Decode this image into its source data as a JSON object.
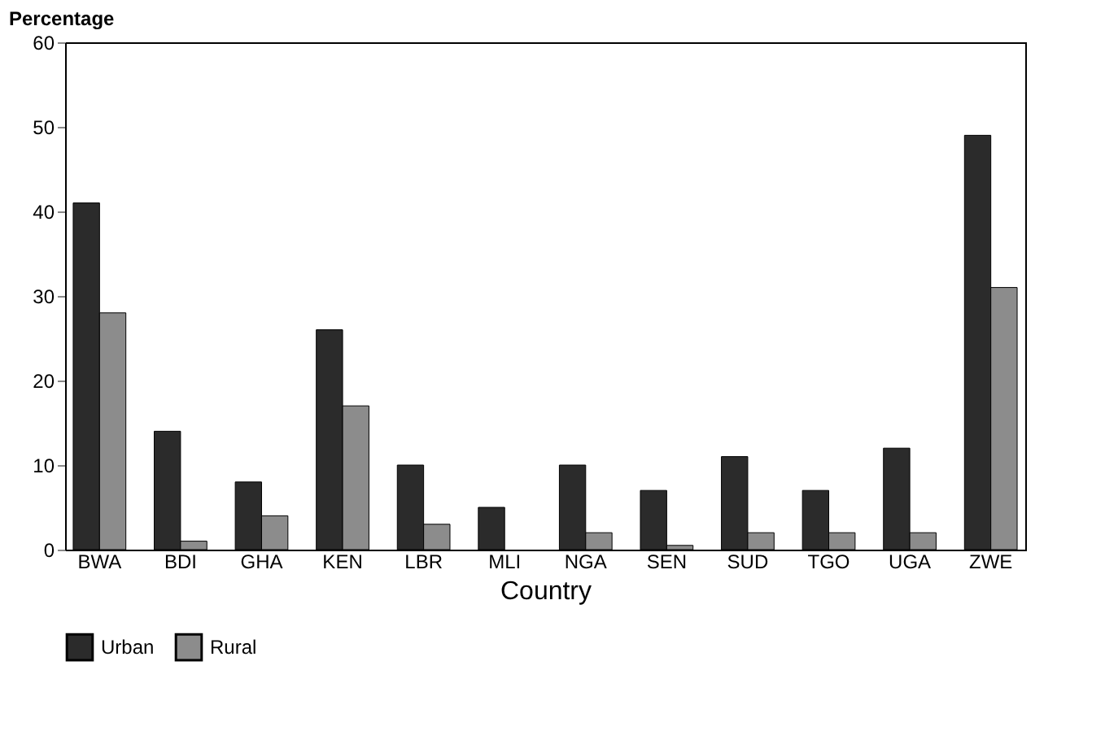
{
  "chart_data": {
    "type": "bar",
    "xlabel": "Country",
    "ylabel": "Percentage",
    "categories": [
      "BWA",
      "BDI",
      "GHA",
      "KEN",
      "LBR",
      "MLI",
      "NGA",
      "SEN",
      "SUD",
      "TGO",
      "UGA",
      "ZWE"
    ],
    "series": [
      {
        "name": "Urban",
        "color": "#2b2b2b",
        "values": [
          41,
          14,
          8,
          26,
          10,
          5,
          10,
          7,
          11,
          7,
          12,
          49
        ]
      },
      {
        "name": "Rural",
        "color": "#8c8c8c",
        "values": [
          28,
          1,
          4,
          17,
          3,
          0,
          2,
          0.5,
          2,
          2,
          2,
          31
        ]
      }
    ],
    "ylim": [
      0,
      60
    ],
    "yticks": [
      0,
      10,
      20,
      30,
      40,
      50,
      60
    ],
    "grid": false,
    "legend": "bottom"
  }
}
